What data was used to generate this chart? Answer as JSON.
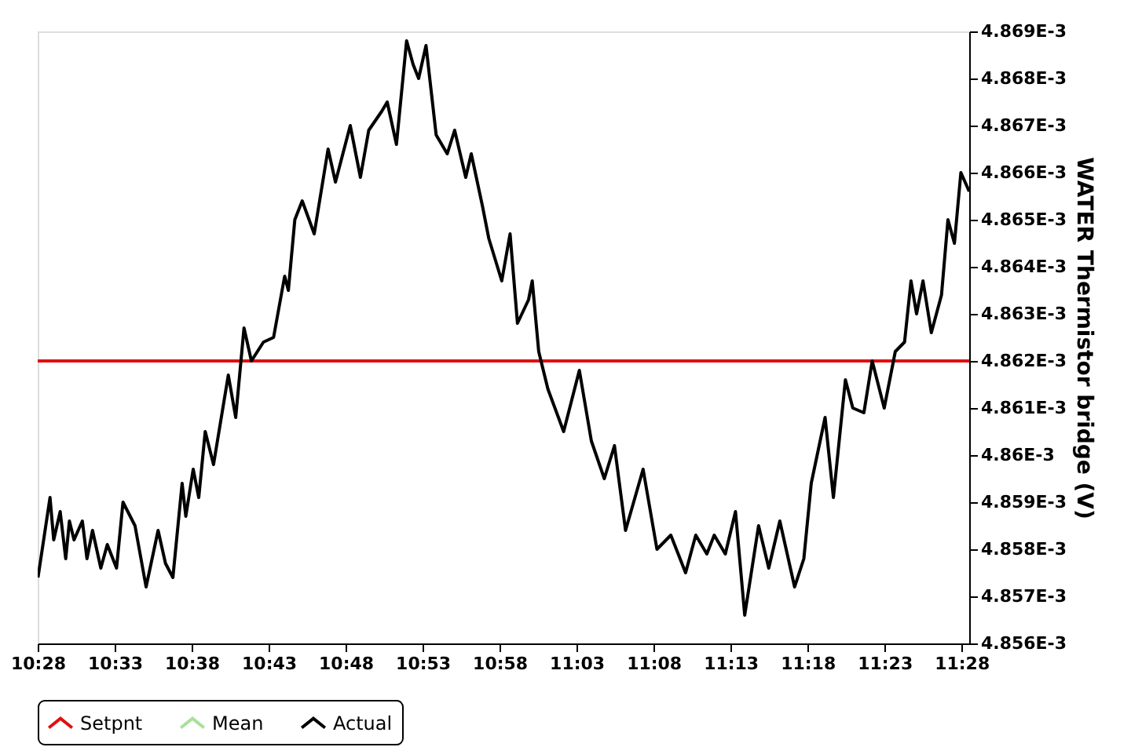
{
  "chart_data": {
    "type": "line",
    "ylabel": "WATER Thermistor bridge (V)",
    "xlim": [
      10.466667,
      11.475
    ],
    "ylim": [
      0.004856,
      0.004869
    ],
    "xticks": [
      {
        "value": 10.466667,
        "label": "10:28"
      },
      {
        "value": 10.55,
        "label": "10:33"
      },
      {
        "value": 10.633333,
        "label": "10:38"
      },
      {
        "value": 10.716667,
        "label": "10:43"
      },
      {
        "value": 10.8,
        "label": "10:48"
      },
      {
        "value": 10.883333,
        "label": "10:53"
      },
      {
        "value": 10.966667,
        "label": "10:58"
      },
      {
        "value": 11.05,
        "label": "11:03"
      },
      {
        "value": 11.133333,
        "label": "11:08"
      },
      {
        "value": 11.216667,
        "label": "11:13"
      },
      {
        "value": 11.3,
        "label": "11:18"
      },
      {
        "value": 11.383333,
        "label": "11:23"
      },
      {
        "value": 11.466667,
        "label": "11:28"
      }
    ],
    "yticks": [
      {
        "value": 0.004856,
        "label": "4.856E-3"
      },
      {
        "value": 0.004857,
        "label": "4.857E-3"
      },
      {
        "value": 0.004858,
        "label": "4.858E-3"
      },
      {
        "value": 0.004859,
        "label": "4.859E-3"
      },
      {
        "value": 0.00486,
        "label": "4.86E-3"
      },
      {
        "value": 0.004861,
        "label": "4.861E-3"
      },
      {
        "value": 0.004862,
        "label": "4.862E-3"
      },
      {
        "value": 0.004863,
        "label": "4.863E-3"
      },
      {
        "value": 0.004864,
        "label": "4.864E-3"
      },
      {
        "value": 0.004865,
        "label": "4.865E-3"
      },
      {
        "value": 0.004866,
        "label": "4.866E-3"
      },
      {
        "value": 0.004867,
        "label": "4.867E-3"
      },
      {
        "value": 0.004868,
        "label": "4.868E-3"
      },
      {
        "value": 0.004869,
        "label": "4.869E-3"
      }
    ],
    "grid": false,
    "legend": "bottom",
    "marker": "none",
    "line_style": "solid",
    "series": [
      {
        "name": "Setpnt",
        "color": "#e01010",
        "x": [
          10.466667,
          11.475
        ],
        "values": [
          0.004862,
          0.004862
        ]
      },
      {
        "name": "Mean",
        "color": "#a8e09c"
      },
      {
        "name": "Actual",
        "color": "#000000",
        "x": [
          10.467,
          10.48,
          10.484,
          10.491,
          10.497,
          10.501,
          10.506,
          10.515,
          10.52,
          10.526,
          10.535,
          10.542,
          10.552,
          10.559,
          10.572,
          10.584,
          10.597,
          10.605,
          10.613,
          10.623,
          10.627,
          10.635,
          10.641,
          10.648,
          10.657,
          10.673,
          10.681,
          10.69,
          10.698,
          10.711,
          10.722,
          10.734,
          10.738,
          10.745,
          10.753,
          10.766,
          10.781,
          10.789,
          10.805,
          10.816,
          10.825,
          10.839,
          10.845,
          10.855,
          10.866,
          10.873,
          10.879,
          10.887,
          10.898,
          10.91,
          10.918,
          10.93,
          10.936,
          10.948,
          10.955,
          10.969,
          10.978,
          10.986,
          10.998,
          11.002,
          11.009,
          11.019,
          11.036,
          11.053,
          11.066,
          11.08,
          11.091,
          11.103,
          11.122,
          11.137,
          11.152,
          11.168,
          11.179,
          11.191,
          11.199,
          11.211,
          11.222,
          11.232,
          11.247,
          11.258,
          11.27,
          11.286,
          11.296,
          11.304,
          11.319,
          11.328,
          11.341,
          11.349,
          11.361,
          11.37,
          11.383,
          11.395,
          11.405,
          11.412,
          11.418,
          11.425,
          11.434,
          11.445,
          11.452,
          11.459,
          11.466,
          11.475
        ],
        "values": [
          0.0048574,
          0.0048591,
          0.0048582,
          0.0048588,
          0.0048578,
          0.0048586,
          0.0048582,
          0.0048586,
          0.0048578,
          0.0048584,
          0.0048576,
          0.0048581,
          0.0048576,
          0.004859,
          0.0048585,
          0.0048572,
          0.0048584,
          0.0048577,
          0.0048574,
          0.0048594,
          0.0048587,
          0.0048597,
          0.0048591,
          0.0048605,
          0.0048598,
          0.0048617,
          0.0048608,
          0.0048627,
          0.004862,
          0.0048624,
          0.0048625,
          0.0048638,
          0.0048635,
          0.004865,
          0.0048654,
          0.0048647,
          0.0048665,
          0.0048658,
          0.004867,
          0.0048659,
          0.0048669,
          0.0048673,
          0.0048675,
          0.0048666,
          0.0048688,
          0.0048683,
          0.004868,
          0.0048687,
          0.0048668,
          0.0048664,
          0.0048669,
          0.0048659,
          0.0048664,
          0.0048653,
          0.0048646,
          0.0048637,
          0.0048647,
          0.0048628,
          0.0048633,
          0.0048637,
          0.0048622,
          0.0048614,
          0.0048605,
          0.0048618,
          0.0048603,
          0.0048595,
          0.0048602,
          0.0048584,
          0.0048597,
          0.004858,
          0.0048583,
          0.0048575,
          0.0048583,
          0.0048579,
          0.0048583,
          0.0048579,
          0.0048588,
          0.0048566,
          0.0048585,
          0.0048576,
          0.0048586,
          0.0048572,
          0.0048578,
          0.0048594,
          0.0048608,
          0.0048591,
          0.0048616,
          0.004861,
          0.0048609,
          0.004862,
          0.004861,
          0.0048622,
          0.0048624,
          0.0048637,
          0.004863,
          0.0048637,
          0.0048626,
          0.0048634,
          0.004865,
          0.0048645,
          0.004866,
          0.0048656
        ]
      }
    ]
  }
}
